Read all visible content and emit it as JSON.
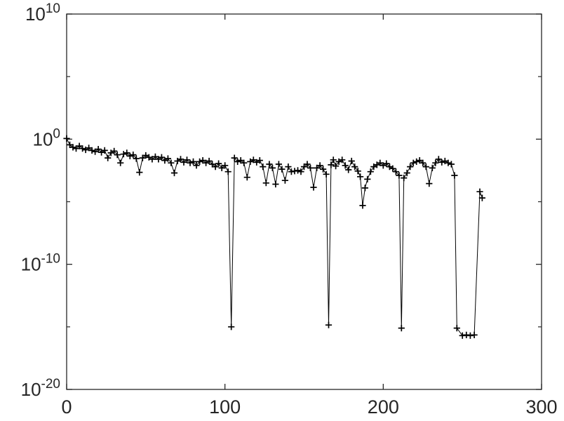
{
  "figure": {
    "background_color": "#ffffff",
    "axes_color": "#262626",
    "title": "",
    "xlabel": "",
    "ylabel": ""
  },
  "chart_data": {
    "type": "line",
    "subtype": "semilogy-with-plus-markers",
    "grid": false,
    "legend": null,
    "x_scale": "linear",
    "y_scale": "log10",
    "xlim": [
      0,
      300
    ],
    "ylim_exponents": [
      -20,
      10
    ],
    "xticks": [
      {
        "value": 0,
        "label": "0"
      },
      {
        "value": 100,
        "label": "100"
      },
      {
        "value": 200,
        "label": "200"
      },
      {
        "value": 300,
        "label": "300"
      }
    ],
    "yticks": [
      {
        "exponent": 10,
        "base": "10",
        "exp_label": "10",
        "label": "10^10"
      },
      {
        "exponent": 0,
        "base": "10",
        "exp_label": "0",
        "label": "10^0"
      },
      {
        "exponent": -10,
        "base": "10",
        "exp_label": "-10",
        "label": "10^-10"
      },
      {
        "exponent": -20,
        "base": "10",
        "exp_label": "-20",
        "label": "10^-20"
      }
    ],
    "ytick_minor_exponents": [
      5,
      -5,
      -15
    ],
    "series": [
      {
        "name": "series-1",
        "color": "#000000",
        "marker": "+",
        "x": [
          0,
          2,
          4,
          6,
          8,
          10,
          12,
          14,
          16,
          18,
          20,
          22,
          24,
          26,
          28,
          30,
          32,
          34,
          36,
          38,
          40,
          42,
          44,
          46,
          48,
          50,
          52,
          54,
          56,
          58,
          60,
          62,
          64,
          66,
          68,
          70,
          72,
          74,
          76,
          78,
          80,
          82,
          84,
          86,
          88,
          90,
          92,
          94,
          96,
          98,
          100,
          102,
          104,
          106,
          108,
          110,
          112,
          114,
          116,
          118,
          120,
          122,
          124,
          126,
          128,
          130,
          132,
          134,
          136,
          138,
          140,
          142,
          144,
          146,
          148,
          150,
          152,
          154,
          156,
          158,
          160,
          162,
          164,
          165.5,
          167,
          168.5,
          170,
          172,
          174,
          176,
          178,
          180,
          182,
          184,
          185.5,
          187,
          188.5,
          190,
          192,
          194,
          196,
          198,
          200,
          202,
          204,
          206,
          208,
          210,
          211.5,
          213,
          215,
          217,
          219,
          221,
          223,
          225,
          227,
          229,
          231,
          233,
          235,
          237,
          239,
          241,
          243,
          245,
          246.5,
          250,
          252.5,
          255,
          257.5,
          261,
          262.5
        ],
        "log10y": [
          0.05,
          -0.45,
          -0.65,
          -0.75,
          -0.55,
          -0.75,
          -0.85,
          -0.7,
          -0.9,
          -1.0,
          -0.8,
          -1.05,
          -0.9,
          -1.5,
          -1.1,
          -0.95,
          -1.25,
          -1.9,
          -1.2,
          -1.1,
          -1.35,
          -1.25,
          -1.55,
          -2.65,
          -1.5,
          -1.3,
          -1.45,
          -1.6,
          -1.4,
          -1.6,
          -1.45,
          -1.7,
          -1.55,
          -1.9,
          -2.7,
          -1.75,
          -1.6,
          -1.85,
          -1.65,
          -1.9,
          -1.8,
          -2.1,
          -1.8,
          -1.7,
          -1.9,
          -1.75,
          -2.0,
          -2.2,
          -1.95,
          -2.3,
          -2.1,
          -2.6,
          -15.0,
          -1.5,
          -1.8,
          -1.7,
          -1.9,
          -3.05,
          -1.8,
          -1.65,
          -1.85,
          -1.7,
          -2.2,
          -3.5,
          -2.0,
          -2.3,
          -3.6,
          -2.0,
          -2.4,
          -3.3,
          -2.2,
          -2.6,
          -2.55,
          -2.5,
          -2.6,
          -2.2,
          -2.0,
          -2.3,
          -3.85,
          -2.3,
          -2.1,
          -2.4,
          -2.8,
          -14.85,
          -2.05,
          -1.65,
          -2.15,
          -1.8,
          -1.65,
          -2.1,
          -2.45,
          -1.75,
          -2.2,
          -2.55,
          -3.0,
          -5.3,
          -3.9,
          -3.2,
          -2.6,
          -2.2,
          -2.05,
          -1.9,
          -2.1,
          -1.95,
          -2.2,
          -2.35,
          -2.6,
          -2.9,
          -15.1,
          -3.1,
          -2.7,
          -2.2,
          -1.9,
          -1.8,
          -1.7,
          -1.9,
          -2.2,
          -3.55,
          -2.3,
          -1.9,
          -1.6,
          -1.85,
          -1.75,
          -1.9,
          -2.0,
          -2.9,
          -15.1,
          -15.7,
          -15.65,
          -15.7,
          -15.65,
          -4.2,
          -4.7
        ]
      }
    ]
  }
}
